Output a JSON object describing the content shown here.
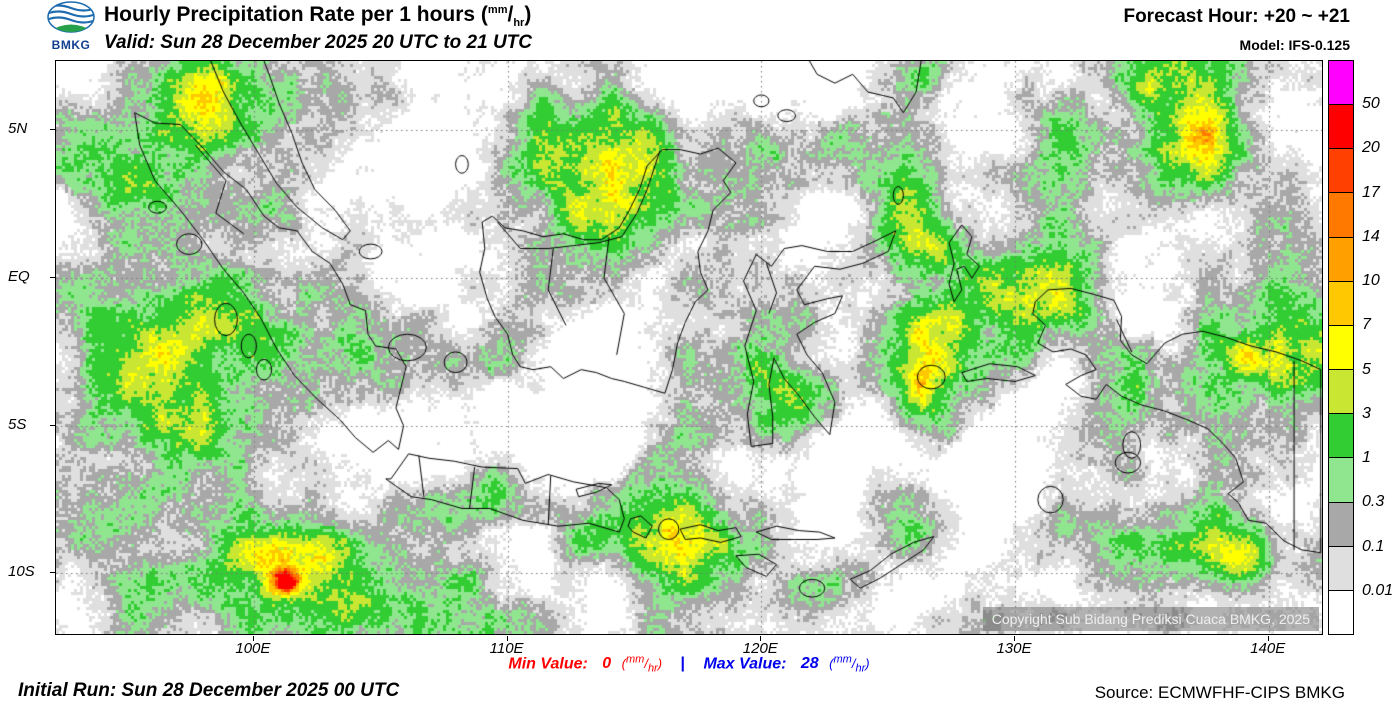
{
  "header": {
    "logo_text": "BMKG",
    "title_prefix": "Hourly Precipitation Rate per 1 hours ",
    "valid": "Valid: Sun 28 December 2025 20 UTC to 21 UTC",
    "forecast_hour": "Forecast Hour: +20 ~ +21",
    "model": "Model: IFS-0.125"
  },
  "units": {
    "open": "(",
    "num": "mm",
    "slash": "/",
    "den": "hr",
    "close": ")"
  },
  "map": {
    "copyright": "Copyright Sub Bidang Prediksi Cuaca BMKG, 2025",
    "lat_ticks": [
      {
        "label": "5N",
        "value": 5
      },
      {
        "label": "EQ",
        "value": 0
      },
      {
        "label": "5S",
        "value": -5
      },
      {
        "label": "10S",
        "value": -10
      }
    ],
    "lon_ticks": [
      {
        "label": "100E",
        "value": 100
      },
      {
        "label": "110E",
        "value": 110
      },
      {
        "label": "120E",
        "value": 120
      },
      {
        "label": "130E",
        "value": 130
      },
      {
        "label": "140E",
        "value": 140
      }
    ]
  },
  "legend": {
    "levels": [
      "50",
      "20",
      "17",
      "14",
      "10",
      "7",
      "5",
      "3",
      "1",
      "0.3",
      "0.1",
      "0.01"
    ],
    "colors": [
      "#FF00FF",
      "#FF0000",
      "#FF4000",
      "#FF7800",
      "#FFA000",
      "#FFC800",
      "#FFFF00",
      "#C8E632",
      "#32CD32",
      "#8FE68F",
      "#A8A8A8",
      "#DFDFDF",
      "#FFFFFF"
    ]
  },
  "stats": {
    "min_label": "Min Value:",
    "min_value": "0",
    "sep": "|",
    "max_label": "Max Value:",
    "max_value": "28",
    "min_color": "#FF0000",
    "max_color": "#0000EE"
  },
  "footer": {
    "initial_run": "Initial Run: Sun 28 December 2025 00 UTC",
    "source": "Source: ECMWFHF-CIPS BMKG"
  }
}
